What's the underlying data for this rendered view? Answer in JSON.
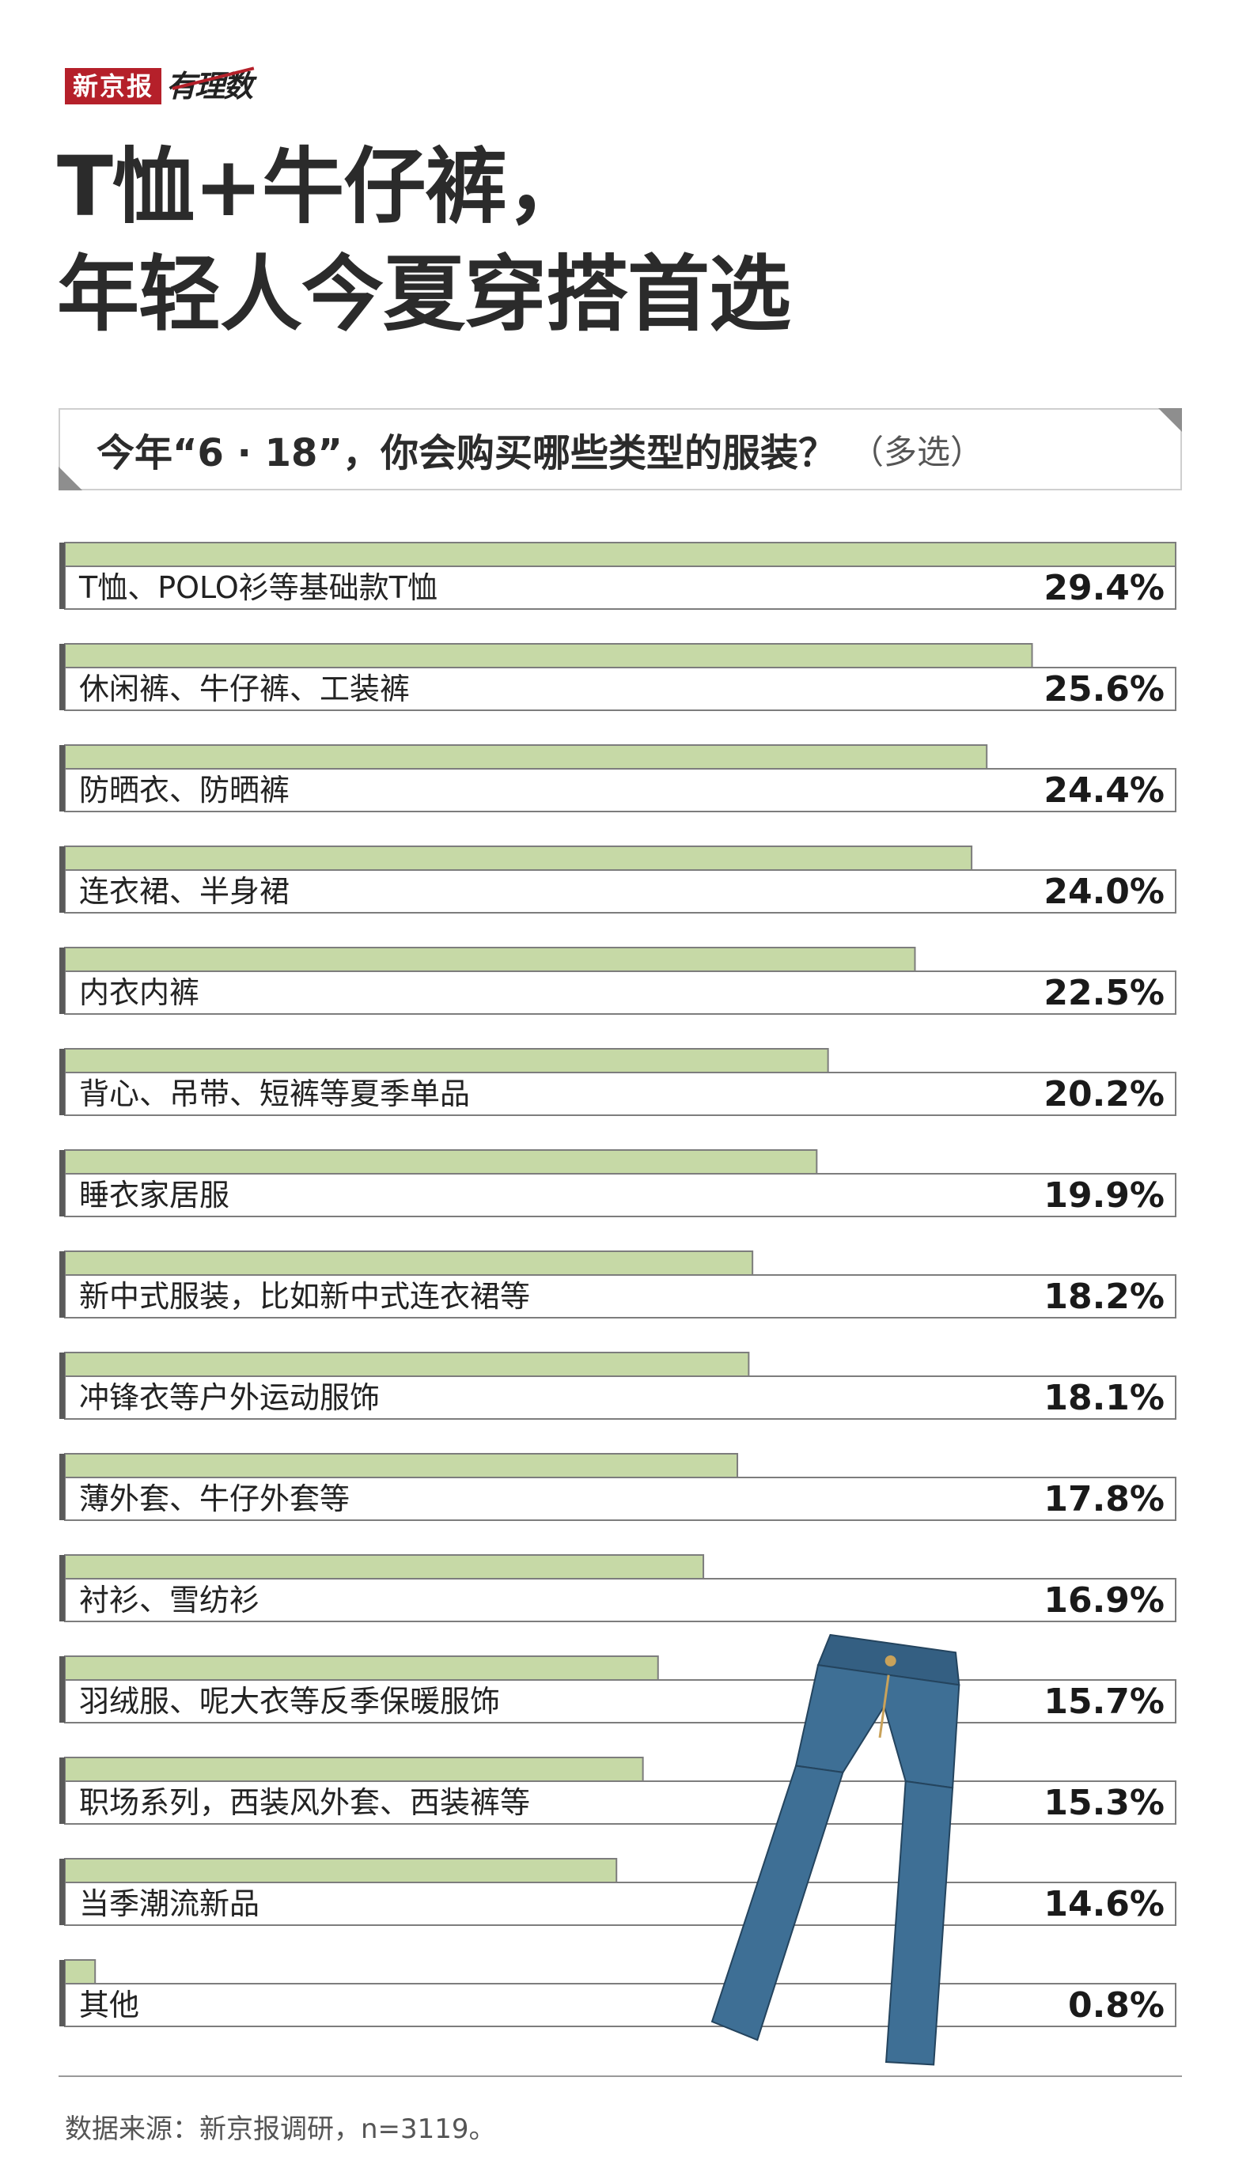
{
  "brand": {
    "name": "新京报",
    "script": "有理数"
  },
  "title": {
    "line1": "T恤+牛仔裤，",
    "line2": "年轻人今夏穿搭首选"
  },
  "question": {
    "text": "今年“6 · 18”，你会购买哪些类型的服装？",
    "note": "（多选）"
  },
  "colors": {
    "bar_fill": "#c6d9a6",
    "bar_border": "#7d7d7d",
    "brand_red": "#b5202a",
    "pants_blue": "#3e6f95"
  },
  "chart_data": {
    "type": "bar",
    "orientation": "horizontal",
    "unit": "%",
    "xlim": [
      0,
      29.4
    ],
    "categories": [
      "T恤、POLO衫等基础款T恤",
      "休闲裤、牛仔裤、工装裤",
      "防晒衣、防晒裤",
      "连衣裙、半身裙",
      "内衣内裤",
      "背心、吊带、短裤等夏季单品",
      "睡衣家居服",
      "新中式服装，比如新中式连衣裙等",
      "冲锋衣等户外运动服饰",
      "薄外套、牛仔外套等",
      "衬衫、雪纺衫",
      "羽绒服、呢大衣等反季保暖服饰",
      "职场系列，西装风外套、西装裤等",
      "当季潮流新品",
      "其他"
    ],
    "values": [
      29.4,
      25.6,
      24.4,
      24.0,
      22.5,
      20.2,
      19.9,
      18.2,
      18.1,
      17.8,
      16.9,
      15.7,
      15.3,
      14.6,
      0.8
    ],
    "value_labels": [
      "29.4%",
      "25.6%",
      "24.4%",
      "24.0%",
      "22.5%",
      "20.2%",
      "19.9%",
      "18.2%",
      "18.1%",
      "17.8%",
      "16.9%",
      "15.7%",
      "15.3%",
      "14.6%",
      "0.8%"
    ]
  },
  "illustration": {
    "icon": "jeans-icon"
  },
  "source": "数据来源：新京报调研，n=3119。"
}
